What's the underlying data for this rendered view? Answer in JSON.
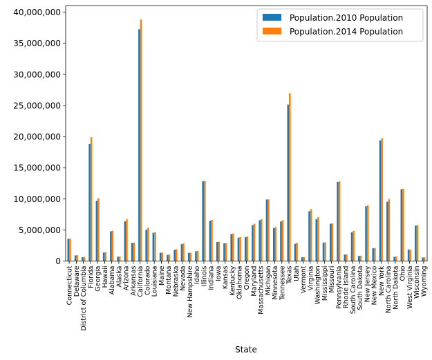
{
  "chart_data": {
    "type": "bar",
    "xlabel": "State",
    "ylabel": "",
    "ylim": [
      0,
      41000000
    ],
    "yticks": [
      0,
      5000000,
      10000000,
      15000000,
      20000000,
      25000000,
      30000000,
      35000000,
      40000000
    ],
    "ytick_labels": [
      "0",
      "5,000,000",
      "10,000,000",
      "15,000,000",
      "20,000,000",
      "25,000,000",
      "30,000,000",
      "35,000,000",
      "40,000,000"
    ],
    "legend_position": "top-right",
    "grid": false,
    "categories": [
      "Connecticut",
      "Delaware",
      "District of Columbia",
      "Florida",
      "Georgia",
      "Hawaii",
      "Alabama",
      "Alaska",
      "Arizona",
      "Arkansas",
      "California",
      "Colorado",
      "Louisiana",
      "Maine",
      "Montana",
      "Nebraska",
      "Nevada",
      "New Hampshire",
      "Idaho",
      "Illinois",
      "Indiana",
      "Iowa",
      "Kansas",
      "Kentucky",
      "Oklahoma",
      "Oregon",
      "Maryland",
      "Massachusetts",
      "Michigan",
      "Minnesota",
      "Tennessee",
      "Texas",
      "Utah",
      "Vermont",
      "Virginia",
      "Washington",
      "Mississippi",
      "Missouri",
      "Pennsylvania",
      "Rhode Island",
      "South Carolina",
      "South Dakota",
      "New Jersey",
      "New Mexico",
      "New York",
      "North Carolina",
      "North Dakota",
      "Ohio",
      "West Virginia",
      "Wisconsin",
      "Wyoming"
    ],
    "series": [
      {
        "name": "Population.2010 Population",
        "color": "#1f77b4",
        "values": [
          3574097,
          897934,
          601723,
          18801310,
          9687653,
          1360301,
          4779736,
          710231,
          6392017,
          2915918,
          37253956,
          5029196,
          4533372,
          1328361,
          989415,
          1826341,
          2700551,
          1316470,
          1567582,
          12830632,
          6483802,
          3046355,
          2853118,
          4339367,
          3751351,
          3831074,
          5773552,
          6547629,
          9883640,
          5303925,
          6346105,
          25145561,
          2763885,
          625741,
          8001024,
          6724540,
          2967297,
          5988927,
          12702379,
          1052567,
          4625364,
          814180,
          8791894,
          2059179,
          19378102,
          9535483,
          672591,
          11536504,
          1852994,
          5686986,
          563626
        ]
      },
      {
        "name": "Population.2014 Population",
        "color": "#ff7f0e",
        "values": [
          3596677,
          935614,
          658893,
          19893297,
          10097343,
          1419561,
          4849377,
          736732,
          6731484,
          2966369,
          38802500,
          5355866,
          4649676,
          1330089,
          1023579,
          1881503,
          2839099,
          1326813,
          1634464,
          12880580,
          6596855,
          3107126,
          2904021,
          4413457,
          3878051,
          3970239,
          5976407,
          6745408,
          9909877,
          5457173,
          6549352,
          26956958,
          2942902,
          626562,
          8326289,
          7061530,
          2994079,
          6063589,
          12787209,
          1055173,
          4832482,
          853175,
          8938175,
          2085572,
          19746227,
          9943964,
          739482,
          11594163,
          1850326,
          5757564,
          584153
        ]
      }
    ]
  }
}
